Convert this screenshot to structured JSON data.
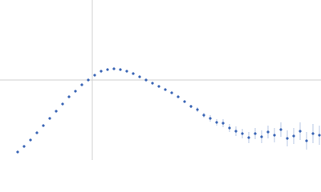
{
  "chart_data": {
    "type": "scatter",
    "x": [
      22,
      30,
      38,
      46,
      54,
      62,
      70,
      78,
      86,
      94,
      102,
      110,
      118,
      126,
      134,
      142,
      150,
      158,
      166,
      174,
      182,
      190,
      198,
      206,
      214,
      222,
      230,
      238,
      246,
      254,
      262,
      270,
      278,
      286,
      294,
      302,
      310,
      318,
      326,
      334,
      342,
      350,
      358,
      366,
      374,
      382,
      390,
      398
    ],
    "series": [
      {
        "color": "#3a65b5",
        "values": [
          10,
          17,
          25,
          34,
          43,
          52,
          61,
          70,
          79,
          86,
          94,
          100,
          106,
          111,
          113,
          114,
          113,
          111,
          108,
          104,
          100,
          96,
          92,
          88,
          84,
          79,
          73,
          67,
          63,
          56,
          52,
          47,
          46,
          40,
          36,
          33,
          28,
          33,
          29,
          35,
          31,
          38,
          27,
          30,
          36,
          24,
          33,
          31
        ],
        "errors": [
          1,
          1,
          1,
          1,
          1,
          1,
          1,
          1,
          1,
          1,
          1,
          1,
          1,
          1,
          1,
          1,
          1,
          1,
          1,
          1,
          1,
          1,
          1,
          1,
          1,
          1,
          1,
          2,
          3,
          3,
          4,
          4,
          5,
          5,
          6,
          6,
          7,
          7,
          8,
          8,
          9,
          9,
          10,
          10,
          11,
          11,
          12,
          12
        ]
      }
    ],
    "xlim": [
      0,
      400
    ],
    "ylim": [
      0,
      200
    ],
    "xticks": [
      115
    ],
    "yticks": [
      100
    ],
    "grid": true,
    "tick_labels": false
  }
}
